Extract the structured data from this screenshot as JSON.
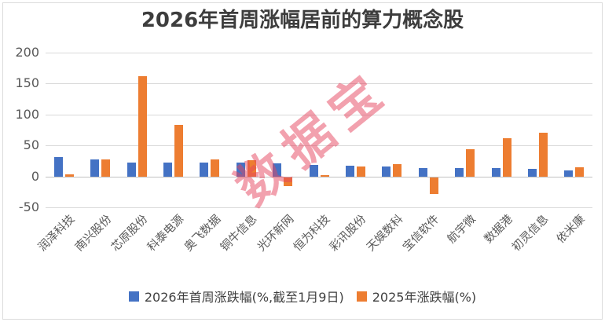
{
  "chart_data": {
    "type": "bar",
    "title": "2026年首周涨幅居前的算力概念股",
    "watermark": "数据宝",
    "categories": [
      "润泽科技",
      "南兴股份",
      "芯原股份",
      "科泰电源",
      "奥飞数据",
      "铜牛信息",
      "光环新网",
      "恒为科技",
      "彩讯股份",
      "天娱数科",
      "宝信软件",
      "航宇微",
      "数据港",
      "初灵信息",
      "依米康"
    ],
    "series": [
      {
        "name": "2026年首周涨跌幅(%,截至1月9日)",
        "color": "#4472C4",
        "values": [
          31,
          28,
          23,
          23,
          23,
          22,
          21,
          18,
          17,
          16,
          14,
          14,
          13,
          12,
          10
        ]
      },
      {
        "name": "2025年涨跌幅(%)",
        "color": "#ED7D31",
        "values": [
          3,
          27,
          162,
          83,
          28,
          26,
          -14,
          2,
          16,
          20,
          -27,
          44,
          62,
          70,
          15
        ]
      }
    ],
    "ylim": [
      -50,
      200
    ],
    "yticks": [
      200,
      150,
      100,
      50,
      0,
      -50
    ],
    "grid": true,
    "legend_position": "bottom",
    "xlabel": "",
    "ylabel": "",
    "colors": {
      "grid": "#d9d9d9",
      "zero_axis": "#c2c2c2",
      "tick_text": "#595959",
      "title_text": "#3d3d3d",
      "watermark_pink": "rgba(229,67,93,0.5)",
      "frame_border": "#dcdcdc"
    }
  }
}
